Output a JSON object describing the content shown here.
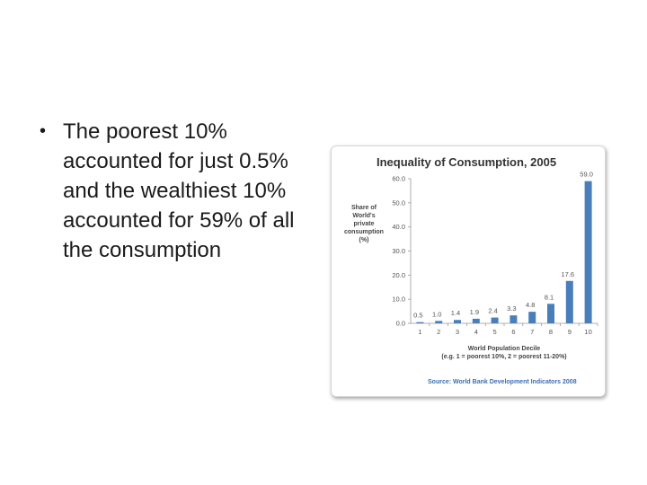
{
  "bullet": {
    "lines": [
      "The poorest 10%",
      "accounted for just 0.5%",
      "and the wealthiest 10%",
      "accounted for 59% of all",
      "the consumption"
    ]
  },
  "chart_data": {
    "type": "bar",
    "title": "Inequality of Consumption, 2005",
    "ylabel_lines": [
      "Share of",
      "World's",
      "private",
      "consumption",
      "(%)"
    ],
    "xlabel_lines": [
      "World Population Decile",
      "(e.g. 1 = poorest 10%, 2 = poorest 11-20%)"
    ],
    "source": "Source: World Bank Development Indicators 2008",
    "categories": [
      "1",
      "2",
      "3",
      "4",
      "5",
      "6",
      "7",
      "8",
      "9",
      "10"
    ],
    "values": [
      0.5,
      1.0,
      1.4,
      1.9,
      2.4,
      3.3,
      4.8,
      8.1,
      17.6,
      59.0
    ],
    "value_labels": [
      "0.5",
      "1.0",
      "1.4",
      "1.9",
      "2.4",
      "3.3",
      "4.8",
      "8.1",
      "17.6",
      "59.0"
    ],
    "ylim": [
      0,
      60
    ],
    "yticks": [
      "0.0",
      "10.0",
      "20.0",
      "30.0",
      "40.0",
      "50.0",
      "60.0"
    ],
    "bar_color": "#4a7ebb",
    "grid": false,
    "legend": false
  }
}
